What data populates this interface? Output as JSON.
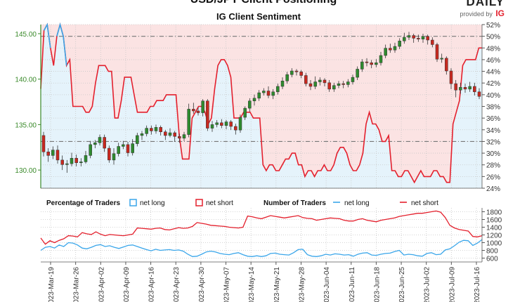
{
  "title": "USD/JPY Client Positioning",
  "subtitle": "IG Client Sentiment",
  "brand": {
    "text": "DAILY",
    "provided_by": "provided by",
    "logo": "IG",
    "logo_color": "#e4202d"
  },
  "colors": {
    "net_long": "#3aa6ea",
    "net_short": "#e4202d",
    "long_fill": "#e5f3fb",
    "short_fill": "#fbe3e3",
    "bull": "#2e8b2e",
    "bear": "#c8281f",
    "price_axis": "#3a8a2a"
  },
  "legend": {
    "pct_title": "Percentage of Traders",
    "num_title": "Number of Traders",
    "net_long": "net long",
    "net_short": "net short"
  },
  "chart_data": [
    {
      "type": "candlestick",
      "title": "IG Client Sentiment",
      "price_axis": {
        "ticks": [
          "130.00",
          "135.00",
          "140.00",
          "145.00"
        ],
        "range": [
          128.0,
          146.0
        ]
      },
      "pct_axis": {
        "ticks": [
          "24%",
          "26%",
          "28%",
          "30%",
          "32%",
          "34%",
          "36%",
          "38%",
          "40%",
          "42%",
          "44%",
          "46%",
          "48%",
          "50%",
          "52%"
        ],
        "range": [
          24,
          52
        ]
      },
      "x_ticks": [
        "2023-Mar-19",
        "2023-Mar-26",
        "2023-Apr-02",
        "2023-Apr-09",
        "2023-Apr-16",
        "2023-Apr-23",
        "2023-Apr-30",
        "2023-May-07",
        "2023-May-14",
        "2023-May-21",
        "2023-May-28",
        "2023-Jun-04",
        "2023-Jun-11",
        "2023-Jun-18",
        "2023-Jun-25",
        "2023-Jul-02",
        "2023-Jul-09",
        "2023-Jul-16"
      ],
      "reference_lines": [
        50,
        32
      ],
      "candles": [
        {
          "o": 133.8,
          "c": 132.0,
          "h": 134.2,
          "l": 131.5
        },
        {
          "o": 132.0,
          "c": 131.6,
          "h": 132.4,
          "l": 130.9
        },
        {
          "o": 131.6,
          "c": 132.2,
          "h": 132.6,
          "l": 131.2
        },
        {
          "o": 132.2,
          "c": 131.1,
          "h": 132.7,
          "l": 130.7
        },
        {
          "o": 131.1,
          "c": 130.6,
          "h": 131.6,
          "l": 130.0
        },
        {
          "o": 130.6,
          "c": 130.7,
          "h": 131.1,
          "l": 129.7
        },
        {
          "o": 130.7,
          "c": 131.3,
          "h": 131.9,
          "l": 130.4
        },
        {
          "o": 131.3,
          "c": 130.8,
          "h": 131.7,
          "l": 130.4
        },
        {
          "o": 130.8,
          "c": 130.9,
          "h": 131.3,
          "l": 130.4
        },
        {
          "o": 130.9,
          "c": 131.6,
          "h": 132.1,
          "l": 130.7
        },
        {
          "o": 131.6,
          "c": 132.8,
          "h": 133.2,
          "l": 131.3
        },
        {
          "o": 132.8,
          "c": 133.0,
          "h": 133.3,
          "l": 132.4
        },
        {
          "o": 133.0,
          "c": 133.6,
          "h": 133.9,
          "l": 132.7
        },
        {
          "o": 133.6,
          "c": 132.4,
          "h": 133.9,
          "l": 132.0
        },
        {
          "o": 132.4,
          "c": 131.1,
          "h": 132.7,
          "l": 130.8
        },
        {
          "o": 131.1,
          "c": 131.8,
          "h": 132.4,
          "l": 130.6
        },
        {
          "o": 131.8,
          "c": 132.6,
          "h": 133.0,
          "l": 131.5
        },
        {
          "o": 132.6,
          "c": 132.8,
          "h": 133.2,
          "l": 132.3
        },
        {
          "o": 132.8,
          "c": 131.9,
          "h": 133.1,
          "l": 131.5
        },
        {
          "o": 131.9,
          "c": 132.9,
          "h": 133.4,
          "l": 131.6
        },
        {
          "o": 132.9,
          "c": 133.8,
          "h": 134.1,
          "l": 132.6
        },
        {
          "o": 133.8,
          "c": 134.0,
          "h": 134.3,
          "l": 133.3
        },
        {
          "o": 134.0,
          "c": 134.6,
          "h": 134.9,
          "l": 133.7
        },
        {
          "o": 134.6,
          "c": 134.3,
          "h": 134.9,
          "l": 133.9
        },
        {
          "o": 134.3,
          "c": 134.7,
          "h": 135.0,
          "l": 134.0
        },
        {
          "o": 134.7,
          "c": 134.2,
          "h": 134.9,
          "l": 133.8
        },
        {
          "o": 134.2,
          "c": 133.8,
          "h": 134.4,
          "l": 133.3
        },
        {
          "o": 133.8,
          "c": 134.1,
          "h": 134.6,
          "l": 133.6
        },
        {
          "o": 134.1,
          "c": 133.7,
          "h": 134.3,
          "l": 133.1
        },
        {
          "o": 133.7,
          "c": 133.5,
          "h": 134.0,
          "l": 133.0
        },
        {
          "o": 133.5,
          "c": 133.9,
          "h": 134.2,
          "l": 133.2
        },
        {
          "o": 133.9,
          "c": 136.7,
          "h": 137.3,
          "l": 133.6
        },
        {
          "o": 136.7,
          "c": 136.5,
          "h": 137.4,
          "l": 136.2
        },
        {
          "o": 136.5,
          "c": 136.3,
          "h": 136.9,
          "l": 136.0
        },
        {
          "o": 136.3,
          "c": 137.6,
          "h": 137.8,
          "l": 135.9
        },
        {
          "o": 137.6,
          "c": 134.6,
          "h": 137.8,
          "l": 134.3
        },
        {
          "o": 134.6,
          "c": 135.0,
          "h": 135.4,
          "l": 134.2
        },
        {
          "o": 135.0,
          "c": 135.2,
          "h": 135.5,
          "l": 134.7
        },
        {
          "o": 135.2,
          "c": 134.9,
          "h": 135.6,
          "l": 134.6
        },
        {
          "o": 134.9,
          "c": 135.3,
          "h": 135.5,
          "l": 134.5
        },
        {
          "o": 135.3,
          "c": 134.8,
          "h": 135.5,
          "l": 134.4
        },
        {
          "o": 134.8,
          "c": 134.4,
          "h": 135.1,
          "l": 133.9
        },
        {
          "o": 134.4,
          "c": 135.8,
          "h": 136.1,
          "l": 134.1
        },
        {
          "o": 135.8,
          "c": 136.8,
          "h": 137.0,
          "l": 135.5
        },
        {
          "o": 136.8,
          "c": 137.6,
          "h": 137.9,
          "l": 136.4
        },
        {
          "o": 137.6,
          "c": 137.9,
          "h": 138.3,
          "l": 137.1
        },
        {
          "o": 137.9,
          "c": 138.5,
          "h": 138.8,
          "l": 137.6
        },
        {
          "o": 138.5,
          "c": 138.7,
          "h": 139.0,
          "l": 138.2
        },
        {
          "o": 138.7,
          "c": 138.2,
          "h": 139.2,
          "l": 137.9
        },
        {
          "o": 138.2,
          "c": 138.6,
          "h": 138.9,
          "l": 137.8
        },
        {
          "o": 138.6,
          "c": 139.2,
          "h": 139.5,
          "l": 138.3
        },
        {
          "o": 139.2,
          "c": 139.8,
          "h": 140.2,
          "l": 138.9
        },
        {
          "o": 139.8,
          "c": 140.5,
          "h": 140.8,
          "l": 139.5
        },
        {
          "o": 140.5,
          "c": 140.9,
          "h": 141.2,
          "l": 140.2
        },
        {
          "o": 140.9,
          "c": 140.8,
          "h": 141.1,
          "l": 140.4
        },
        {
          "o": 140.8,
          "c": 140.4,
          "h": 141.0,
          "l": 140.1
        },
        {
          "o": 140.4,
          "c": 139.5,
          "h": 140.7,
          "l": 139.2
        },
        {
          "o": 139.5,
          "c": 139.2,
          "h": 139.9,
          "l": 138.8
        },
        {
          "o": 139.2,
          "c": 139.7,
          "h": 140.3,
          "l": 138.9
        },
        {
          "o": 139.7,
          "c": 139.9,
          "h": 140.2,
          "l": 139.3
        },
        {
          "o": 139.9,
          "c": 139.6,
          "h": 140.1,
          "l": 139.2
        },
        {
          "o": 139.6,
          "c": 138.9,
          "h": 139.9,
          "l": 138.6
        },
        {
          "o": 138.9,
          "c": 139.3,
          "h": 139.6,
          "l": 138.6
        },
        {
          "o": 139.3,
          "c": 139.5,
          "h": 139.8,
          "l": 139.0
        },
        {
          "o": 139.5,
          "c": 139.4,
          "h": 139.8,
          "l": 139.0
        },
        {
          "o": 139.4,
          "c": 139.7,
          "h": 140.0,
          "l": 139.1
        },
        {
          "o": 139.7,
          "c": 140.2,
          "h": 140.5,
          "l": 139.4
        },
        {
          "o": 140.2,
          "c": 141.1,
          "h": 141.4,
          "l": 139.9
        },
        {
          "o": 141.1,
          "c": 141.9,
          "h": 142.2,
          "l": 140.8
        },
        {
          "o": 141.9,
          "c": 141.8,
          "h": 142.3,
          "l": 141.4
        },
        {
          "o": 141.8,
          "c": 141.6,
          "h": 142.1,
          "l": 141.2
        },
        {
          "o": 141.6,
          "c": 141.8,
          "h": 142.2,
          "l": 141.3
        },
        {
          "o": 141.8,
          "c": 142.6,
          "h": 143.0,
          "l": 141.5
        },
        {
          "o": 142.6,
          "c": 143.4,
          "h": 143.8,
          "l": 142.3
        },
        {
          "o": 143.4,
          "c": 143.2,
          "h": 143.9,
          "l": 142.9
        },
        {
          "o": 143.2,
          "c": 143.6,
          "h": 144.0,
          "l": 142.9
        },
        {
          "o": 143.6,
          "c": 144.2,
          "h": 144.5,
          "l": 143.3
        },
        {
          "o": 144.2,
          "c": 144.6,
          "h": 145.1,
          "l": 143.9
        },
        {
          "o": 144.6,
          "c": 144.8,
          "h": 145.2,
          "l": 144.3
        },
        {
          "o": 144.8,
          "c": 144.5,
          "h": 145.0,
          "l": 144.0
        },
        {
          "o": 144.5,
          "c": 144.4,
          "h": 144.9,
          "l": 144.1
        },
        {
          "o": 144.4,
          "c": 144.7,
          "h": 145.0,
          "l": 144.0
        },
        {
          "o": 144.7,
          "c": 144.3,
          "h": 144.9,
          "l": 143.8
        },
        {
          "o": 144.3,
          "c": 143.8,
          "h": 144.6,
          "l": 143.5
        },
        {
          "o": 143.8,
          "c": 142.2,
          "h": 144.0,
          "l": 141.9
        },
        {
          "o": 142.2,
          "c": 142.3,
          "h": 142.8,
          "l": 141.8
        },
        {
          "o": 142.3,
          "c": 140.9,
          "h": 142.5,
          "l": 140.5
        },
        {
          "o": 140.9,
          "c": 139.5,
          "h": 141.2,
          "l": 138.9
        },
        {
          "o": 139.5,
          "c": 138.8,
          "h": 139.9,
          "l": 138.0
        },
        {
          "o": 138.8,
          "c": 139.1,
          "h": 139.6,
          "l": 138.4
        },
        {
          "o": 139.1,
          "c": 138.9,
          "h": 139.5,
          "l": 138.5
        },
        {
          "o": 138.9,
          "c": 139.2,
          "h": 139.7,
          "l": 138.6
        },
        {
          "o": 139.2,
          "c": 138.6,
          "h": 139.6,
          "l": 138.2
        },
        {
          "o": 138.6,
          "c": 138.1,
          "h": 139.0,
          "l": 137.8
        }
      ],
      "series": [
        {
          "name": "net short",
          "type": "pct_line",
          "values": [
            41,
            51,
            52,
            48,
            45,
            50,
            52,
            50,
            45,
            46,
            38,
            38,
            38,
            38,
            37,
            37,
            38,
            42,
            45,
            45,
            45,
            44,
            44,
            36,
            36,
            39,
            43,
            43,
            43,
            40,
            37,
            37,
            37,
            37,
            38,
            38,
            39,
            39,
            39,
            40,
            40,
            40,
            40,
            33,
            29,
            29,
            29,
            36,
            37,
            38,
            38,
            37,
            35,
            36,
            41,
            45,
            46,
            46,
            45,
            43,
            36,
            36,
            36,
            37,
            37,
            37,
            36,
            36,
            36,
            28,
            27,
            28,
            28,
            27,
            27,
            28,
            29,
            29,
            30,
            30,
            28,
            28,
            26,
            27,
            27,
            26,
            27,
            27,
            28,
            27,
            27,
            28,
            30,
            31,
            31,
            30,
            28,
            27,
            27,
            28,
            30,
            35,
            37,
            35,
            35,
            34,
            32,
            32,
            33,
            27,
            27,
            26,
            26,
            27,
            27,
            26,
            25,
            26,
            27,
            26,
            26,
            26,
            27,
            27,
            26,
            26,
            25,
            25,
            35,
            37,
            39,
            45,
            46,
            46,
            46,
            46,
            48,
            48
          ]
        }
      ]
    },
    {
      "type": "line",
      "title": "Number of Traders",
      "y_ticks": [
        "600",
        "800",
        "1000",
        "1200",
        "1400",
        "1600",
        "1800"
      ],
      "ylim": [
        500,
        1900
      ],
      "series": [
        {
          "name": "net short",
          "values": [
            1120,
            960,
            1050,
            1000,
            1060,
            1100,
            1180,
            1170,
            1150,
            1260,
            1230,
            1210,
            1280,
            1220,
            1180,
            1210,
            1200,
            1190,
            1180,
            1200,
            1220,
            1380,
            1370,
            1360,
            1350,
            1370,
            1380,
            1340,
            1330,
            1360,
            1390,
            1370,
            1380,
            1420,
            1520,
            1500,
            1480,
            1450,
            1440,
            1430,
            1420,
            1400,
            1390,
            1380,
            1400,
            1690,
            1670,
            1640,
            1620,
            1660,
            1700,
            1680,
            1660,
            1640,
            1660,
            1680,
            1700,
            1650,
            1630,
            1620,
            1580,
            1600,
            1620,
            1640,
            1630,
            1620,
            1580,
            1560,
            1560,
            1600,
            1620,
            1580,
            1560,
            1540,
            1580,
            1600,
            1620,
            1640,
            1680,
            1700,
            1720,
            1740,
            1760,
            1760,
            1780,
            1800,
            1820,
            1790,
            1650,
            1450,
            1380,
            1340,
            1320,
            1300,
            1160,
            1150,
            1180
          ]
        },
        {
          "name": "net long",
          "values": [
            800,
            880,
            900,
            860,
            940,
            900,
            1000,
            990,
            940,
            860,
            840,
            880,
            930,
            950,
            900,
            920,
            880,
            850,
            890,
            930,
            940,
            900,
            860,
            820,
            790,
            830,
            800,
            810,
            820,
            800,
            810,
            780,
            700,
            640,
            650,
            700,
            760,
            780,
            760,
            720,
            700,
            690,
            720,
            740,
            690,
            650,
            640,
            660,
            640,
            660,
            720,
            730,
            700,
            690,
            680,
            740,
            820,
            830,
            690,
            650,
            640,
            660,
            700,
            680,
            710,
            700,
            680,
            690,
            650,
            700,
            730,
            740,
            680,
            670,
            700,
            720,
            730,
            770,
            800,
            680,
            700,
            690,
            660,
            650,
            720,
            740,
            690,
            700,
            810,
            840,
            920,
            1010,
            1060,
            1050,
            930,
            990,
            1080
          ]
        }
      ]
    }
  ]
}
